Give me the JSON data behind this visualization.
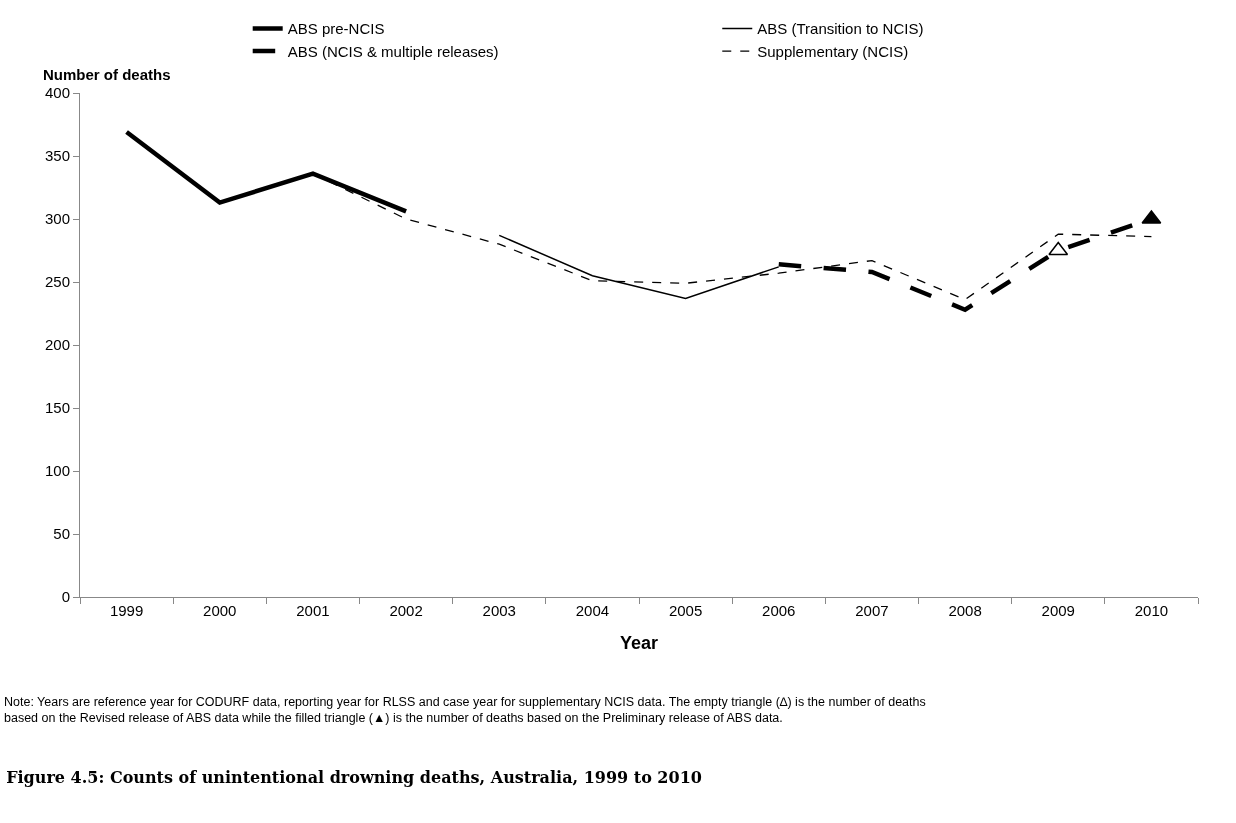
{
  "chart_data": {
    "type": "line",
    "title": "Figure 4.5: Counts of unintentional drowning deaths, Australia, 1999 to 2010",
    "xlabel": "Year",
    "ylabel": "Number of deaths",
    "categories": [
      "1999",
      "2000",
      "2001",
      "2002",
      "2003",
      "2004",
      "2005",
      "2006",
      "2007",
      "2008",
      "2009",
      "2010"
    ],
    "series": [
      {
        "name": "ABS pre-NCIS",
        "color": "#000000",
        "line_style": "solid",
        "values": [
          369,
          313,
          336,
          306,
          null,
          null,
          null,
          null,
          null,
          null,
          null,
          null
        ]
      },
      {
        "name": "ABS (Transition to NCIS)",
        "color": "#000000",
        "line_style": "solid",
        "values": [
          null,
          null,
          null,
          null,
          287,
          255,
          237,
          262,
          null,
          null,
          null,
          null
        ]
      },
      {
        "name": "ABS (NCIS & multiple releases)",
        "color": "#000000",
        "line_style": "dashed",
        "values": [
          null,
          null,
          null,
          null,
          null,
          null,
          null,
          264,
          258,
          228,
          275,
          300
        ]
      },
      {
        "name": "Supplementary (NCIS)",
        "color": "#000000",
        "line_style": "dashed",
        "values": [
          null,
          null,
          336,
          300,
          280,
          251,
          249,
          257,
          267,
          236,
          288,
          286
        ]
      },
      {
        "type": "scatter",
        "marker": "triangle",
        "color": "#ffffff",
        "values": [
          null,
          null,
          null,
          null,
          null,
          null,
          null,
          null,
          null,
          null,
          275,
          null
        ]
      },
      {
        "type": "scatter",
        "marker": "triangle",
        "color": "#000000",
        "values": [
          null,
          null,
          null,
          null,
          null,
          null,
          null,
          null,
          null,
          null,
          null,
          300
        ]
      }
    ],
    "ylim": [
      0,
      400
    ],
    "yticks": [
      0,
      50,
      100,
      150,
      200,
      250,
      300,
      350,
      400
    ],
    "grid": false,
    "legend": "top",
    "marker": "none",
    "annotations": [
      "Note: Years are reference year for CODURF data, reporting year for RLSS and case year for supplementary NCIS data. The empty triangle (∆) is the number of deaths based on the Revised release of ABS data while the filled triangle (▲) is the number of deaths based on the Preliminary release of ABS data."
    ]
  }
}
